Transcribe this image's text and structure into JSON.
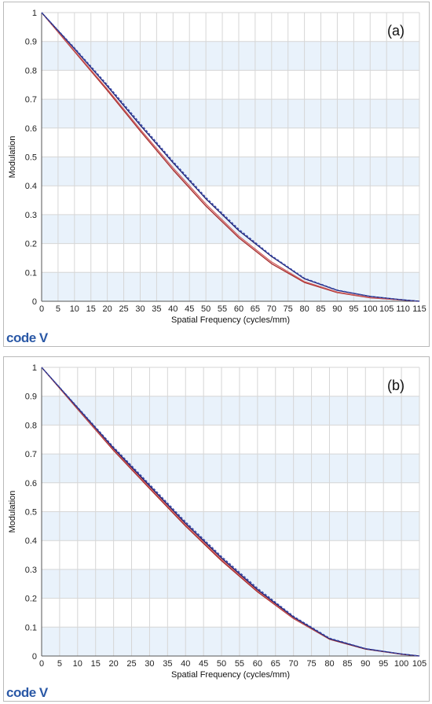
{
  "colors": {
    "band": "#e9f2fb",
    "grid": "#d6d6d6",
    "axis": "#555555"
  },
  "logo_text": "code V",
  "chart_data": [
    {
      "type": "line",
      "panel_label": "(a)",
      "xlabel": "Spatial Frequency (cycles/mm)",
      "ylabel": "Modulation",
      "xlim": [
        0,
        115
      ],
      "ylim": [
        0,
        1
      ],
      "x_ticks": [
        0,
        5,
        10,
        15,
        20,
        25,
        30,
        35,
        40,
        45,
        50,
        55,
        60,
        65,
        70,
        75,
        80,
        85,
        90,
        95,
        100,
        105,
        110,
        115
      ],
      "y_ticks": [
        0,
        0.1,
        0.2,
        0.3,
        0.4,
        0.5,
        0.6,
        0.7,
        0.8,
        0.9,
        1
      ],
      "grid": true,
      "legend": "none",
      "series": [
        {
          "color": "#1c1c6e",
          "dash": "",
          "x": [
            0,
            10,
            20,
            30,
            40,
            50,
            60,
            70,
            80,
            90,
            100,
            110,
            115
          ],
          "y": [
            1,
            0.875,
            0.745,
            0.61,
            0.48,
            0.355,
            0.245,
            0.155,
            0.078,
            0.038,
            0.017,
            0.005,
            0
          ]
        },
        {
          "color": "#3a4fb0",
          "dash": "3,2",
          "x": [
            0,
            10,
            20,
            30,
            40,
            50,
            60,
            70,
            80,
            90,
            100,
            110,
            115
          ],
          "y": [
            1,
            0.878,
            0.75,
            0.616,
            0.485,
            0.36,
            0.25,
            0.158,
            0.08,
            0.039,
            0.017,
            0.005,
            0
          ]
        },
        {
          "color": "#a52a2a",
          "dash": "",
          "x": [
            0,
            10,
            20,
            30,
            40,
            50,
            60,
            70,
            80,
            90,
            100,
            110,
            115
          ],
          "y": [
            1,
            0.865,
            0.73,
            0.59,
            0.455,
            0.33,
            0.22,
            0.13,
            0.065,
            0.03,
            0.012,
            0.004,
            0
          ]
        },
        {
          "color": "#d06060",
          "dash": "",
          "x": [
            0,
            10,
            20,
            30,
            40,
            50,
            60,
            70,
            80,
            90,
            100,
            110,
            115
          ],
          "y": [
            1,
            0.868,
            0.735,
            0.596,
            0.462,
            0.337,
            0.226,
            0.136,
            0.068,
            0.032,
            0.013,
            0.004,
            0
          ]
        }
      ]
    },
    {
      "type": "line",
      "panel_label": "(b)",
      "xlabel": "Spatial Frequency (cycles/mm)",
      "ylabel": "Modulation",
      "xlim": [
        0,
        105
      ],
      "ylim": [
        0,
        1
      ],
      "x_ticks": [
        0,
        5,
        10,
        15,
        20,
        25,
        30,
        35,
        40,
        45,
        50,
        55,
        60,
        65,
        70,
        75,
        80,
        85,
        90,
        95,
        100,
        105
      ],
      "y_ticks": [
        0,
        0.1,
        0.2,
        0.3,
        0.4,
        0.5,
        0.6,
        0.7,
        0.8,
        0.9,
        1
      ],
      "grid": true,
      "legend": "none",
      "series": [
        {
          "color": "#1c1c6e",
          "dash": "",
          "x": [
            0,
            10,
            20,
            30,
            40,
            50,
            60,
            70,
            80,
            90,
            100,
            105
          ],
          "y": [
            1,
            0.86,
            0.72,
            0.59,
            0.46,
            0.34,
            0.23,
            0.135,
            0.06,
            0.025,
            0.007,
            0
          ]
        },
        {
          "color": "#3a4fb0",
          "dash": "3,2",
          "x": [
            0,
            10,
            20,
            30,
            40,
            50,
            60,
            70,
            80,
            90,
            100,
            105
          ],
          "y": [
            1,
            0.862,
            0.724,
            0.595,
            0.465,
            0.345,
            0.235,
            0.138,
            0.062,
            0.026,
            0.007,
            0
          ]
        },
        {
          "color": "#a52a2a",
          "dash": "",
          "x": [
            0,
            10,
            20,
            30,
            40,
            50,
            60,
            70,
            80,
            90,
            100,
            105
          ],
          "y": [
            1,
            0.855,
            0.712,
            0.58,
            0.45,
            0.33,
            0.222,
            0.13,
            0.058,
            0.024,
            0.006,
            0
          ]
        },
        {
          "color": "#d06060",
          "dash": "",
          "x": [
            0,
            10,
            20,
            30,
            40,
            50,
            60,
            70,
            80,
            90,
            100,
            105
          ],
          "y": [
            1,
            0.857,
            0.716,
            0.585,
            0.455,
            0.335,
            0.226,
            0.132,
            0.059,
            0.025,
            0.007,
            0
          ]
        }
      ]
    }
  ]
}
